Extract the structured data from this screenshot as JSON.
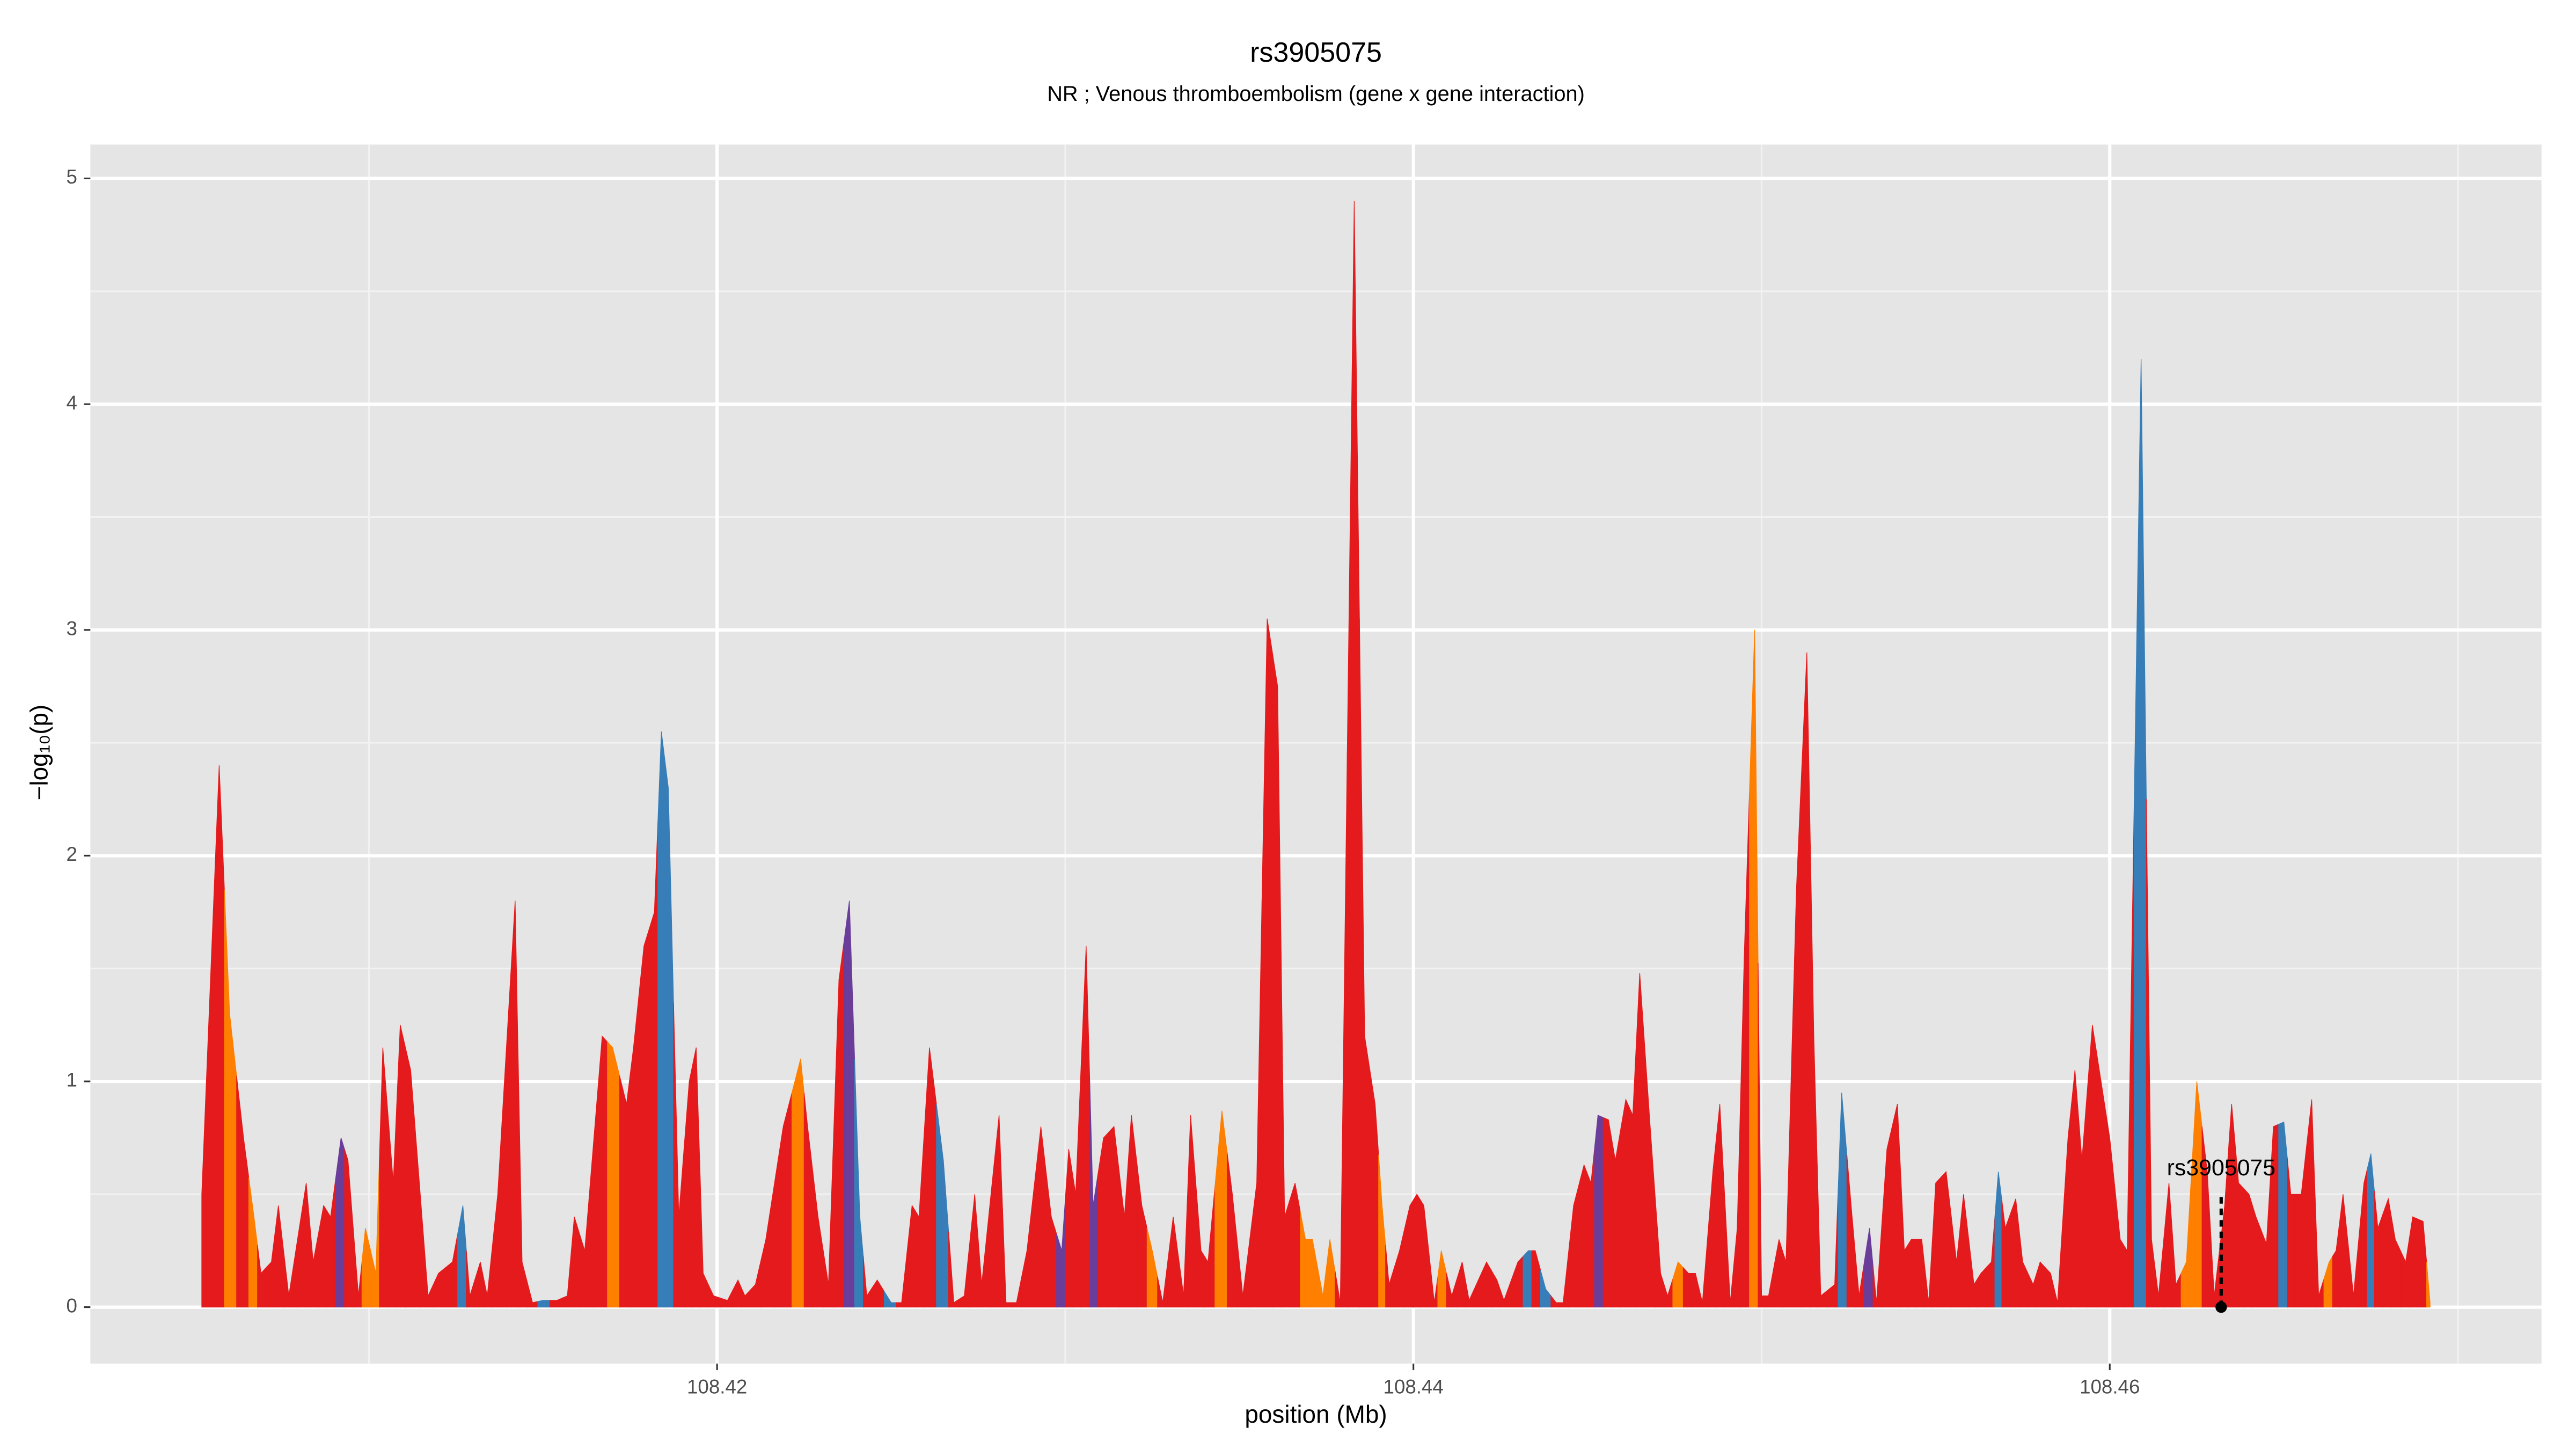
{
  "chart_data": {
    "type": "area",
    "title": "rs3905075",
    "subtitle": "NR ; Venous thromboembolism (gene x gene interaction)",
    "x_label": "position (Mb)",
    "y_label": "−log₁₀(p)",
    "xlim": [
      108.402,
      108.4724
    ],
    "ylim": [
      -0.25,
      5.15
    ],
    "xticks": [
      108.42,
      108.44,
      108.46
    ],
    "yticks": [
      0,
      1,
      2,
      3,
      4,
      5
    ],
    "xminorticks": [
      108.41,
      108.43,
      108.45,
      108.47
    ],
    "yminorticks": [
      0.5,
      1.5,
      2.5,
      3.5,
      4.5
    ],
    "grid": true,
    "annotation": {
      "label": "rs3905075",
      "x": 108.4632,
      "y": 0
    },
    "x": [
      108.4052,
      108.4057,
      108.406,
      108.4064,
      108.4067,
      108.4069,
      108.4072,
      108.4074,
      108.4077,
      108.4082,
      108.4084,
      108.4087,
      108.4089,
      108.4092,
      108.4094,
      108.4097,
      108.4099,
      108.4102,
      108.4104,
      108.4107,
      108.4109,
      108.4112,
      108.4117,
      108.412,
      108.4124,
      108.4127,
      108.4129,
      108.4132,
      108.4134,
      108.4137,
      108.4142,
      108.4144,
      108.4147,
      108.415,
      108.4154,
      108.4157,
      108.4159,
      108.4162,
      108.4167,
      108.417,
      108.4174,
      108.4176,
      108.4179,
      108.4182,
      108.4184,
      108.4186,
      108.4189,
      108.4192,
      108.4194,
      108.4196,
      108.4199,
      108.4203,
      108.4206,
      108.4208,
      108.4211,
      108.4214,
      108.4219,
      108.4224,
      108.4226,
      108.4229,
      108.4232,
      108.4235,
      108.4238,
      108.4241,
      108.4243,
      108.4246,
      108.425,
      108.4253,
      108.4256,
      108.4258,
      108.4261,
      108.4265,
      108.4268,
      108.4271,
      108.4274,
      108.4276,
      108.4281,
      108.4283,
      108.4286,
      108.4289,
      108.4293,
      108.4296,
      108.4299,
      108.4301,
      108.4303,
      108.4306,
      108.4308,
      108.4311,
      108.4314,
      108.4317,
      108.4319,
      108.4322,
      108.4325,
      108.4328,
      108.4331,
      108.4334,
      108.4336,
      108.4339,
      108.4341,
      108.4345,
      108.4348,
      108.4351,
      108.4355,
      108.4358,
      108.4361,
      108.4363,
      108.4366,
      108.4369,
      108.4371,
      108.4374,
      108.4376,
      108.4379,
      108.4383,
      108.4386,
      108.4389,
      108.4391,
      108.4393,
      108.4396,
      108.4399,
      108.4401,
      108.4403,
      108.4406,
      108.4408,
      108.4411,
      108.4414,
      108.4416,
      108.4421,
      108.4424,
      108.4426,
      108.443,
      108.4433,
      108.4435,
      108.4438,
      108.4441,
      108.4443,
      108.4446,
      108.4449,
      108.4451,
      108.4453,
      108.4456,
      108.4458,
      108.4461,
      108.4463,
      108.4465,
      108.4468,
      108.4471,
      108.4473,
      108.4476,
      108.4479,
      108.4481,
      108.4483,
      108.4486,
      108.4488,
      108.4491,
      108.4493,
      108.4495,
      108.4498,
      108.45,
      108.4502,
      108.4505,
      108.4507,
      108.451,
      108.4513,
      108.4515,
      108.4517,
      108.4521,
      108.4523,
      108.4526,
      108.4528,
      108.4531,
      108.4533,
      108.4536,
      108.4539,
      108.4541,
      108.4543,
      108.4546,
      108.4548,
      108.455,
      108.4553,
      108.4556,
      108.4558,
      108.4561,
      108.4563,
      108.4566,
      108.4568,
      108.457,
      108.4573,
      108.4575,
      108.4578,
      108.458,
      108.4583,
      108.4585,
      108.4588,
      108.459,
      108.4592,
      108.4595,
      108.4598,
      108.46,
      108.4603,
      108.4605,
      108.4609,
      108.4612,
      108.4614,
      108.4617,
      108.4619,
      108.4622,
      108.4625,
      108.4628,
      108.463,
      108.4633,
      108.4635,
      108.4637,
      108.464,
      108.4642,
      108.4645,
      108.4647,
      108.465,
      108.4652,
      108.4655,
      108.4658,
      108.466,
      108.4663,
      108.4665,
      108.4667,
      108.467,
      108.4673,
      108.4675,
      108.4677,
      108.468,
      108.4682,
      108.4685,
      108.4687,
      108.469,
      108.4692
    ],
    "values": [
      0.5,
      2.4,
      1.3,
      0.75,
      0.4,
      0.15,
      0.2,
      0.45,
      0.05,
      0.55,
      0.2,
      0.45,
      0.4,
      0.75,
      0.65,
      0.05,
      0.35,
      0.15,
      1.15,
      0.55,
      1.25,
      1.05,
      0.05,
      0.15,
      0.2,
      0.45,
      0.05,
      0.2,
      0.05,
      0.5,
      1.8,
      0.2,
      0.02,
      0.03,
      0.03,
      0.05,
      0.4,
      0.25,
      1.2,
      1.15,
      0.9,
      1.15,
      1.6,
      1.75,
      2.55,
      2.3,
      0.4,
      1,
      1.15,
      0.15,
      0.05,
      0.03,
      0.12,
      0.05,
      0.1,
      0.3,
      0.8,
      1.1,
      0.8,
      0.4,
      0.1,
      1.45,
      1.8,
      0.4,
      0.05,
      0.12,
      0.02,
      0.02,
      0.45,
      0.4,
      1.15,
      0.65,
      0.02,
      0.05,
      0.5,
      0.1,
      0.85,
      0.02,
      0.02,
      0.25,
      0.8,
      0.4,
      0.25,
      0.7,
      0.5,
      1.6,
      0.45,
      0.75,
      0.8,
      0.4,
      0.85,
      0.45,
      0.25,
      0.02,
      0.4,
      0.05,
      0.85,
      0.25,
      0.2,
      0.87,
      0.5,
      0.05,
      0.55,
      3.05,
      2.75,
      0.4,
      0.55,
      0.3,
      0.3,
      0.05,
      0.3,
      0.02,
      4.9,
      1.2,
      0.9,
      0.45,
      0.1,
      0.25,
      0.45,
      0.5,
      0.45,
      0.02,
      0.25,
      0.05,
      0.2,
      0.03,
      0.2,
      0.12,
      0.03,
      0.2,
      0.25,
      0.25,
      0.08,
      0.02,
      0.02,
      0.45,
      0.63,
      0.55,
      0.85,
      0.83,
      0.65,
      0.92,
      0.85,
      1.48,
      0.8,
      0.15,
      0.05,
      0.2,
      0.15,
      0.15,
      0.02,
      0.6,
      0.9,
      0.02,
      0.35,
      1.55,
      3,
      0.05,
      0.05,
      0.3,
      0.2,
      1.85,
      2.9,
      1.2,
      0.05,
      0.1,
      0.95,
      0.4,
      0.05,
      0.35,
      0.02,
      0.7,
      0.9,
      0.25,
      0.3,
      0.3,
      0.02,
      0.55,
      0.6,
      0.2,
      0.5,
      0.1,
      0.15,
      0.2,
      0.6,
      0.35,
      0.48,
      0.2,
      0.1,
      0.2,
      0.15,
      0.02,
      0.75,
      1.05,
      0.65,
      1.25,
      0.95,
      0.75,
      0.3,
      0.25,
      4.2,
      0.3,
      0.05,
      0.55,
      0.1,
      0.2,
      1,
      0.6,
      0.05,
      0.45,
      0.9,
      0.55,
      0.5,
      0.4,
      0.28,
      0.8,
      0.82,
      0.5,
      0.5,
      0.92,
      0.05,
      0.2,
      0.25,
      0.5,
      0.05,
      0.55,
      0.68,
      0.35,
      0.48,
      0.3,
      0.2,
      0.4,
      0.38,
      0.02
    ],
    "colors": [
      "#e41a1c",
      "#e41a1c",
      "#ff7f00",
      "#e41a1c",
      "#ff7f00",
      "#e41a1c",
      "#e41a1c",
      "#e41a1c",
      "#e41a1c",
      "#e41a1c",
      "#e41a1c",
      "#e41a1c",
      "#e41a1c",
      "#6a3d9a",
      "#e41a1c",
      "#e41a1c",
      "#ff7f00",
      "#ff7f00",
      "#e41a1c",
      "#e41a1c",
      "#e41a1c",
      "#e41a1c",
      "#e41a1c",
      "#e41a1c",
      "#e41a1c",
      "#377eb8",
      "#e41a1c",
      "#e41a1c",
      "#e41a1c",
      "#e41a1c",
      "#e41a1c",
      "#e41a1c",
      "#e41a1c",
      "#377eb8",
      "#e41a1c",
      "#e41a1c",
      "#e41a1c",
      "#e41a1c",
      "#e41a1c",
      "#ff7f00",
      "#e41a1c",
      "#e41a1c",
      "#e41a1c",
      "#e41a1c",
      "#377eb8",
      "#377eb8",
      "#e41a1c",
      "#e41a1c",
      "#e41a1c",
      "#e41a1c",
      "#e41a1c",
      "#e41a1c",
      "#e41a1c",
      "#e41a1c",
      "#e41a1c",
      "#e41a1c",
      "#e41a1c",
      "#ff7f00",
      "#e41a1c",
      "#e41a1c",
      "#e41a1c",
      "#e41a1c",
      "#6a3d9a",
      "#377eb8",
      "#e41a1c",
      "#e41a1c",
      "#377eb8",
      "#e41a1c",
      "#e41a1c",
      "#e41a1c",
      "#e41a1c",
      "#377eb8",
      "#e41a1c",
      "#e41a1c",
      "#e41a1c",
      "#e41a1c",
      "#e41a1c",
      "#e41a1c",
      "#e41a1c",
      "#e41a1c",
      "#e41a1c",
      "#e41a1c",
      "#6a3d9a",
      "#e41a1c",
      "#e41a1c",
      "#e41a1c",
      "#6a3d9a",
      "#e41a1c",
      "#e41a1c",
      "#e41a1c",
      "#e41a1c",
      "#e41a1c",
      "#ff7f00",
      "#e41a1c",
      "#e41a1c",
      "#e41a1c",
      "#e41a1c",
      "#e41a1c",
      "#e41a1c",
      "#ff7f00",
      "#e41a1c",
      "#e41a1c",
      "#e41a1c",
      "#e41a1c",
      "#e41a1c",
      "#e41a1c",
      "#e41a1c",
      "#ff7f00",
      "#ff7f00",
      "#ff7f00",
      "#ff7f00",
      "#e41a1c",
      "#e41a1c",
      "#e41a1c",
      "#e41a1c",
      "#ff7f00",
      "#e41a1c",
      "#e41a1c",
      "#e41a1c",
      "#e41a1c",
      "#e41a1c",
      "#e41a1c",
      "#ff7f00",
      "#e41a1c",
      "#e41a1c",
      "#e41a1c",
      "#e41a1c",
      "#e41a1c",
      "#e41a1c",
      "#e41a1c",
      "#377eb8",
      "#e41a1c",
      "#377eb8",
      "#e41a1c",
      "#e41a1c",
      "#e41a1c",
      "#e41a1c",
      "#e41a1c",
      "#6a3d9a",
      "#e41a1c",
      "#e41a1c",
      "#e41a1c",
      "#e41a1c",
      "#e41a1c",
      "#e41a1c",
      "#e41a1c",
      "#e41a1c",
      "#ff7f00",
      "#e41a1c",
      "#e41a1c",
      "#e41a1c",
      "#e41a1c",
      "#e41a1c",
      "#e41a1c",
      "#e41a1c",
      "#e41a1c",
      "#ff7f00",
      "#e41a1c",
      "#e41a1c",
      "#e41a1c",
      "#e41a1c",
      "#e41a1c",
      "#e41a1c",
      "#e41a1c",
      "#e41a1c",
      "#e41a1c",
      "#377eb8",
      "#e41a1c",
      "#e41a1c",
      "#6a3d9a",
      "#e41a1c",
      "#e41a1c",
      "#e41a1c",
      "#e41a1c",
      "#e41a1c",
      "#e41a1c",
      "#e41a1c",
      "#e41a1c",
      "#e41a1c",
      "#e41a1c",
      "#e41a1c",
      "#e41a1c",
      "#e41a1c",
      "#e41a1c",
      "#377eb8",
      "#e41a1c",
      "#e41a1c",
      "#e41a1c",
      "#e41a1c",
      "#e41a1c",
      "#e41a1c",
      "#e41a1c",
      "#e41a1c",
      "#e41a1c",
      "#e41a1c",
      "#e41a1c",
      "#e41a1c",
      "#e41a1c",
      "#e41a1c",
      "#e41a1c",
      "#377eb8",
      "#e41a1c",
      "#e41a1c",
      "#e41a1c",
      "#e41a1c",
      "#ff7f00",
      "#ff7f00",
      "#e41a1c",
      "#e41a1c",
      "#e41a1c",
      "#e41a1c",
      "#e41a1c",
      "#e41a1c",
      "#e41a1c",
      "#e41a1c",
      "#e41a1c",
      "#377eb8",
      "#e41a1c",
      "#e41a1c",
      "#e41a1c",
      "#e41a1c",
      "#ff7f00",
      "#e41a1c",
      "#e41a1c",
      "#e41a1c",
      "#e41a1c",
      "#377eb8",
      "#e41a1c",
      "#e41a1c",
      "#e41a1c",
      "#e41a1c",
      "#e41a1c",
      "#e41a1c",
      "#ff7f00"
    ]
  }
}
